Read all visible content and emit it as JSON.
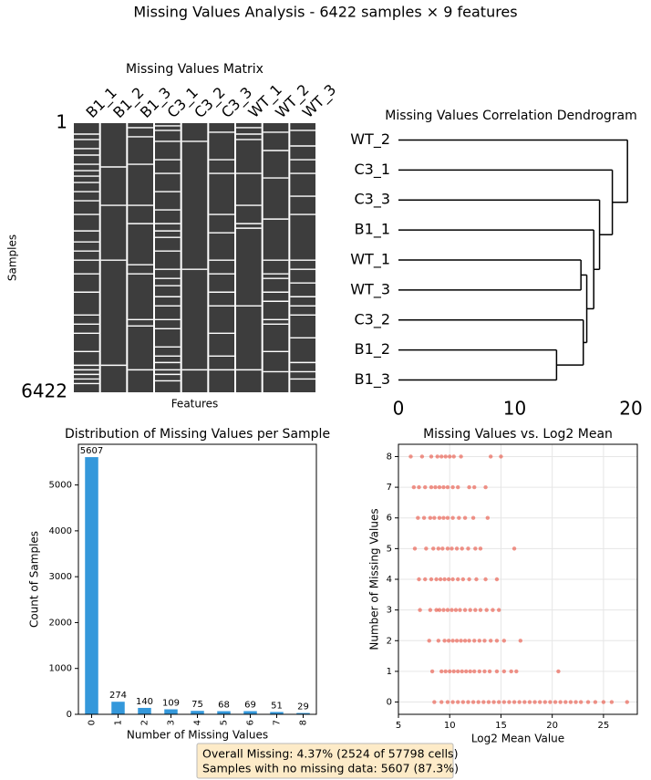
{
  "title": "Missing Values Analysis - 6422 samples × 9 features",
  "annotation": {
    "lines": [
      "Overall Missing: 4.37% (2524 of 57798 cells)",
      "Samples with no missing data: 5607 (87.3%)"
    ]
  },
  "chart_data": [
    {
      "type": "matrix",
      "title": "Missing Values Matrix",
      "xlabel": "Features",
      "ylabel": "Samples",
      "color": "#3d3d3d",
      "columns": [
        "B1_1",
        "B1_2",
        "B1_3",
        "C3_1",
        "C3_2",
        "C3_3",
        "WT_1",
        "WT_2",
        "WT_3"
      ],
      "ylim": [
        1,
        6422
      ],
      "yticks": [
        1,
        6422
      ],
      "missing_rows": [
        [
          262,
          392,
          610,
          763,
          981,
          1134,
          1264,
          1417,
          1635,
          1853,
          2180,
          2572,
          2834,
          3052,
          3270,
          3597,
          4033,
          4578,
          4796,
          5014,
          5450,
          5777,
          5886,
          5995,
          6104,
          6213
        ],
        [
          1046,
          1962,
          3270,
          5777
        ],
        [
          109,
          327,
          981,
          1962,
          2398,
          3379,
          3597,
          4687,
          4840,
          5886
        ],
        [
          65,
          174,
          436,
          872,
          1199,
          1635,
          2071,
          2398,
          2572,
          2725,
          3052,
          3488,
          3706,
          3880,
          4142,
          4360,
          4687,
          4905,
          5341,
          5559,
          5712,
          5886,
          5995,
          6148
        ],
        [
          436,
          3488,
          5886
        ],
        [
          218,
          872,
          1199,
          2180,
          2616,
          3270,
          3597,
          4033,
          4360,
          5014,
          5559,
          5886
        ],
        [
          109,
          262,
          392,
          1199,
          1962,
          2398,
          2507,
          4360,
          5886
        ],
        [
          218,
          654,
          1308,
          2289,
          3270,
          3597,
          3706,
          4033,
          4251,
          4687,
          4796,
          5450,
          5930
        ],
        [
          174,
          545,
          872,
          1199,
          1744,
          2180,
          3270,
          3488,
          3815,
          4142,
          4360,
          4578,
          5123,
          5712,
          5930,
          6104
        ]
      ]
    },
    {
      "type": "dendrogram",
      "title": "Missing Values Correlation Dendrogram",
      "color": "#000000",
      "xlim": [
        0,
        20
      ],
      "xticks": [
        0,
        10,
        20
      ],
      "tree": {
        "height": 19.7,
        "children": [
          "WT_2",
          {
            "height": 18.4,
            "children": [
              "C3_1",
              {
                "height": 17.3,
                "children": [
                  "C3_3",
                  {
                    "height": 16.8,
                    "children": [
                      "B1_1",
                      {
                        "height": 16.2,
                        "children": [
                          {
                            "height": 15.7,
                            "children": [
                              "WT_1",
                              "WT_3"
                            ]
                          },
                          {
                            "height": 15.9,
                            "children": [
                              "C3_2",
                              {
                                "height": 13.6,
                                "children": [
                                  "B1_2",
                                  "B1_3"
                                ]
                              }
                            ]
                          }
                        ]
                      }
                    ]
                  }
                ]
              }
            ]
          }
        ]
      }
    },
    {
      "type": "bar",
      "title": "Distribution of Missing Values per Sample",
      "xlabel": "Number of Missing Values",
      "ylabel": "Count of Samples",
      "color": "#3498db",
      "categories": [
        "0",
        "1",
        "2",
        "3",
        "4",
        "5",
        "6",
        "7",
        "8"
      ],
      "values": [
        5607,
        274,
        140,
        109,
        75,
        68,
        69,
        51,
        29
      ],
      "ylim": [
        0,
        5887
      ],
      "yticks": [
        0,
        1000,
        2000,
        3000,
        4000,
        5000
      ]
    },
    {
      "type": "scatter",
      "title": "Missing Values vs. Log2 Mean",
      "xlabel": "Log2 Mean Value",
      "ylabel": "Number of Missing Values",
      "color": "#e74c3c",
      "alpha": 0.6,
      "grid": true,
      "xlim": [
        5,
        28.3
      ],
      "xticks": [
        5,
        10,
        15,
        20,
        25
      ],
      "ylim": [
        -0.4,
        8.4
      ],
      "yticks": [
        0,
        1,
        2,
        3,
        4,
        5,
        6,
        7,
        8
      ],
      "x": [
        6.2,
        7.3,
        8.2,
        8.8,
        9.2,
        9.6,
        10.0,
        10.4,
        11.1,
        14.0,
        15.0,
        6.5,
        7.0,
        7.6,
        8.2,
        8.6,
        9.0,
        9.4,
        9.8,
        10.3,
        10.8,
        11.9,
        12.4,
        13.5,
        6.9,
        7.5,
        8.1,
        8.5,
        9.0,
        9.4,
        9.8,
        10.3,
        10.9,
        11.5,
        12.3,
        13.7,
        6.6,
        7.7,
        8.4,
        8.9,
        9.3,
        9.8,
        10.2,
        10.7,
        11.2,
        11.8,
        12.5,
        13.0,
        16.3,
        7.0,
        7.6,
        8.2,
        8.7,
        9.1,
        9.5,
        9.9,
        10.3,
        10.8,
        11.3,
        11.9,
        12.6,
        13.5,
        14.6,
        7.1,
        8.1,
        8.7,
        9.0,
        9.4,
        9.8,
        10.2,
        10.6,
        11.0,
        11.5,
        12.0,
        12.5,
        13.0,
        13.6,
        14.2,
        14.8,
        8.0,
        8.9,
        9.5,
        9.9,
        10.3,
        10.7,
        11.1,
        11.5,
        11.9,
        12.4,
        12.9,
        13.4,
        14.0,
        14.6,
        15.3,
        16.9,
        8.3,
        9.2,
        9.6,
        10.0,
        10.4,
        10.8,
        11.2,
        11.6,
        12.0,
        12.4,
        12.9,
        13.4,
        13.9,
        14.6,
        15.3,
        16.0,
        16.5,
        20.6,
        8.5,
        9.2,
        9.8,
        10.3,
        10.8,
        11.3,
        11.8,
        12.3,
        12.8,
        13.3,
        13.8,
        14.3,
        14.8,
        15.3,
        15.8,
        16.3,
        16.8,
        17.3,
        17.8,
        18.3,
        18.8,
        19.3,
        19.8,
        20.3,
        20.8,
        21.3,
        21.8,
        22.3,
        22.8,
        23.5,
        24.2,
        25.0,
        25.8,
        27.3
      ],
      "y": [
        8,
        8,
        8,
        8,
        8,
        8,
        8,
        8,
        8,
        8,
        8,
        7,
        7,
        7,
        7,
        7,
        7,
        7,
        7,
        7,
        7,
        7,
        7,
        7,
        6,
        6,
        6,
        6,
        6,
        6,
        6,
        6,
        6,
        6,
        6,
        6,
        5,
        5,
        5,
        5,
        5,
        5,
        5,
        5,
        5,
        5,
        5,
        5,
        5,
        4,
        4,
        4,
        4,
        4,
        4,
        4,
        4,
        4,
        4,
        4,
        4,
        4,
        4,
        3,
        3,
        3,
        3,
        3,
        3,
        3,
        3,
        3,
        3,
        3,
        3,
        3,
        3,
        3,
        3,
        2,
        2,
        2,
        2,
        2,
        2,
        2,
        2,
        2,
        2,
        2,
        2,
        2,
        2,
        2,
        2,
        1,
        1,
        1,
        1,
        1,
        1,
        1,
        1,
        1,
        1,
        1,
        1,
        1,
        1,
        1,
        1,
        1,
        1,
        0,
        0,
        0,
        0,
        0,
        0,
        0,
        0,
        0,
        0,
        0,
        0,
        0,
        0,
        0,
        0,
        0,
        0,
        0,
        0,
        0,
        0,
        0,
        0,
        0,
        0,
        0,
        0,
        0,
        0,
        0,
        0,
        0,
        0
      ]
    }
  ]
}
